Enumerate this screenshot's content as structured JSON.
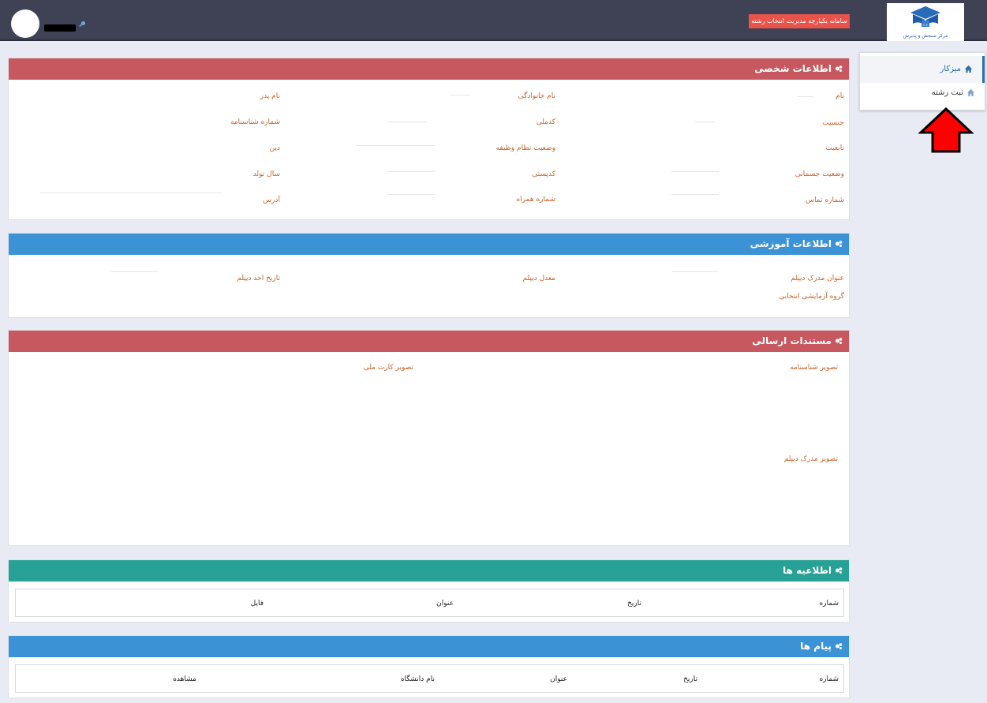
{
  "header": {
    "app_title": "سامانه یکپارچه مدیریت انتخاب رشته",
    "logo_caption": "مرکز سنجش و پذیرش",
    "icons": {
      "user_key": "key-icon"
    }
  },
  "sidebar": {
    "items": [
      {
        "label": "میزکار",
        "icon": "home-icon",
        "active": true
      },
      {
        "label": "ثبت رشته",
        "icon": "home-icon",
        "active": false
      }
    ]
  },
  "panels": {
    "personal": {
      "title": "اطلاعات شخصی",
      "color": "#c8585f",
      "fields": {
        "first_name": "نام",
        "last_name": "نام خانوادگی",
        "father_name": "نام پدر",
        "gender": "جنسیت",
        "national_code": "کدملی",
        "id_number": "شماره شناسنامه",
        "nationality": "تابعیت",
        "military_status": "وضعیت نظام وظیفه",
        "religion": "دین",
        "physical_status": "وضعیت جسمانی",
        "postal_code": "کدپستی",
        "birth_year": "سال تولد",
        "phone": "شماره تماس",
        "mobile": "شماره همراه",
        "address": "آدرس"
      }
    },
    "education": {
      "title": "اطلاعات آموزشی",
      "color": "#3b93d6",
      "fields": {
        "diploma_title": "عنوان مدرک دیپلم",
        "diploma_gpa": "معدل دیپلم",
        "diploma_date": "تاریخ اخذ دیپلم",
        "exam_group": "گروه آزمایشی انتخابی"
      }
    },
    "documents": {
      "title": "مستندات ارسالی",
      "color": "#c8585f",
      "fields": {
        "birth_cert_image": "تصویر شناسنامه",
        "national_card_image": "تصویر کارت ملی",
        "diploma_image": "تصویر مدرک دیپلم"
      }
    },
    "announcements": {
      "title": "اطلاعیه ها",
      "color": "#27a195",
      "columns": [
        "شماره",
        "تاریخ",
        "عنوان",
        "فایل"
      ]
    },
    "messages": {
      "title": "پیام ها",
      "color": "#3b93d6",
      "columns": [
        "شماره",
        "تاریخ",
        "عنوان",
        "نام دانشگاه",
        "مشاهده"
      ]
    }
  },
  "colors": {
    "topbar": "#3f4254",
    "accent_button": "#e9534a",
    "label_text": "#c9622a",
    "arrow": "#ff0000"
  }
}
